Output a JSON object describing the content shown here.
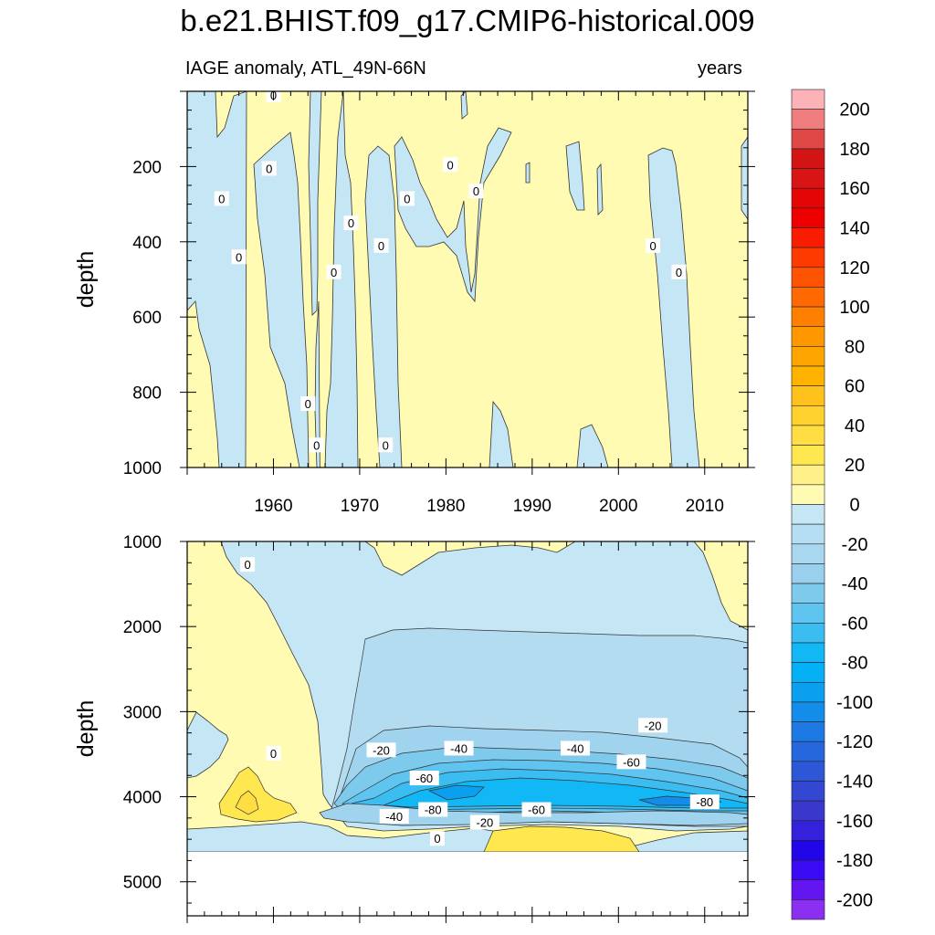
{
  "title": "b.e21.BHIST.f09_g17.CMIP6-historical.009",
  "subtitle_left": "IAGE anomaly, ATL_49N-66N",
  "subtitle_right": "years",
  "chart_data": [
    {
      "type": "heatmap",
      "panel": "upper",
      "ylabel": "depth",
      "xlabel": "",
      "xlim": [
        1950,
        2015
      ],
      "ylim": [
        1000,
        0
      ],
      "x_ticks": [
        1960,
        1970,
        1980,
        1990,
        2000,
        2010
      ],
      "y_ticks": [
        200,
        400,
        600,
        800,
        1000
      ],
      "contour_labels": [
        {
          "text": "0",
          "x": 1960,
          "y": 10
        },
        {
          "text": "0",
          "x": 1959.5,
          "y": 205
        },
        {
          "text": "0",
          "x": 1954,
          "y": 285
        },
        {
          "text": "0",
          "x": 1956,
          "y": 440
        },
        {
          "text": "0",
          "x": 1969,
          "y": 350
        },
        {
          "text": "0",
          "x": 1972.5,
          "y": 410
        },
        {
          "text": "0",
          "x": 1967,
          "y": 480
        },
        {
          "text": "0",
          "x": 1975.5,
          "y": 285
        },
        {
          "text": "0",
          "x": 1980.5,
          "y": 195
        },
        {
          "text": "0",
          "x": 1983.5,
          "y": 265
        },
        {
          "text": "0",
          "x": 2004,
          "y": 410
        },
        {
          "text": "0",
          "x": 2007,
          "y": 480
        },
        {
          "text": "0",
          "x": 1964,
          "y": 830
        },
        {
          "text": "0",
          "x": 1965,
          "y": 940
        },
        {
          "text": "0",
          "x": 1973,
          "y": 940
        }
      ]
    },
    {
      "type": "heatmap",
      "panel": "lower",
      "ylabel": "depth",
      "xlabel": "",
      "xlim": [
        1950,
        2015
      ],
      "ylim": [
        5400,
        1000
      ],
      "x_ticks": [
        1960,
        1970,
        1980,
        1990,
        2000,
        2010
      ],
      "y_ticks": [
        1000,
        2000,
        3000,
        4000,
        5000
      ],
      "contour_labels": [
        {
          "text": "0",
          "x": 1957,
          "y": 1270
        },
        {
          "text": "0",
          "x": 1960,
          "y": 3490
        },
        {
          "text": "-20",
          "x": 1972.5,
          "y": 3450
        },
        {
          "text": "-40",
          "x": 1981.5,
          "y": 3430
        },
        {
          "text": "-40",
          "x": 1995,
          "y": 3430
        },
        {
          "text": "-20",
          "x": 2004,
          "y": 3160
        },
        {
          "text": "-60",
          "x": 2001.5,
          "y": 3590
        },
        {
          "text": "-60",
          "x": 1977.5,
          "y": 3780
        },
        {
          "text": "-80",
          "x": 2010,
          "y": 4060
        },
        {
          "text": "-80",
          "x": 1978.5,
          "y": 4150
        },
        {
          "text": "-40",
          "x": 1974,
          "y": 4230
        },
        {
          "text": "-60",
          "x": 1990.5,
          "y": 4150
        },
        {
          "text": "-20",
          "x": 1984.5,
          "y": 4300
        },
        {
          "text": "0",
          "x": 1979,
          "y": 4490
        }
      ]
    }
  ],
  "colorbar": {
    "labels": [
      "200",
      "180",
      "160",
      "140",
      "120",
      "100",
      "80",
      "60",
      "40",
      "20",
      "0",
      "-20",
      "-40",
      "-60",
      "-80",
      "-100",
      "-120",
      "-140",
      "-160",
      "-180",
      "-200"
    ],
    "colors": [
      "#fbb3b8",
      "#f07d7d",
      "#e04848",
      "#d21414",
      "#d91414",
      "#e40505",
      "#ee0000",
      "#fa1c00",
      "#fd3a00",
      "#fe5300",
      "#ff6900",
      "#ff7f00",
      "#fe9700",
      "#ffa500",
      "#ffb200",
      "#ffc21c",
      "#ffd12f",
      "#ffdd43",
      "#ffe74f",
      "#fff089",
      "#fffbb2",
      "#c5e6f5",
      "#b6def2",
      "#a8d7ef",
      "#98d0ed",
      "#7ecaed",
      "#5fc4ef",
      "#3cbdf1",
      "#12b7f5",
      "#06b0f6",
      "#0aa0ef",
      "#148ce9",
      "#1d79e4",
      "#2667dd",
      "#2e57d8",
      "#3447d2",
      "#3a37cc",
      "#3422db",
      "#2206ea",
      "#3a0af5",
      "#6416f0",
      "#8b2ff0"
    ]
  }
}
